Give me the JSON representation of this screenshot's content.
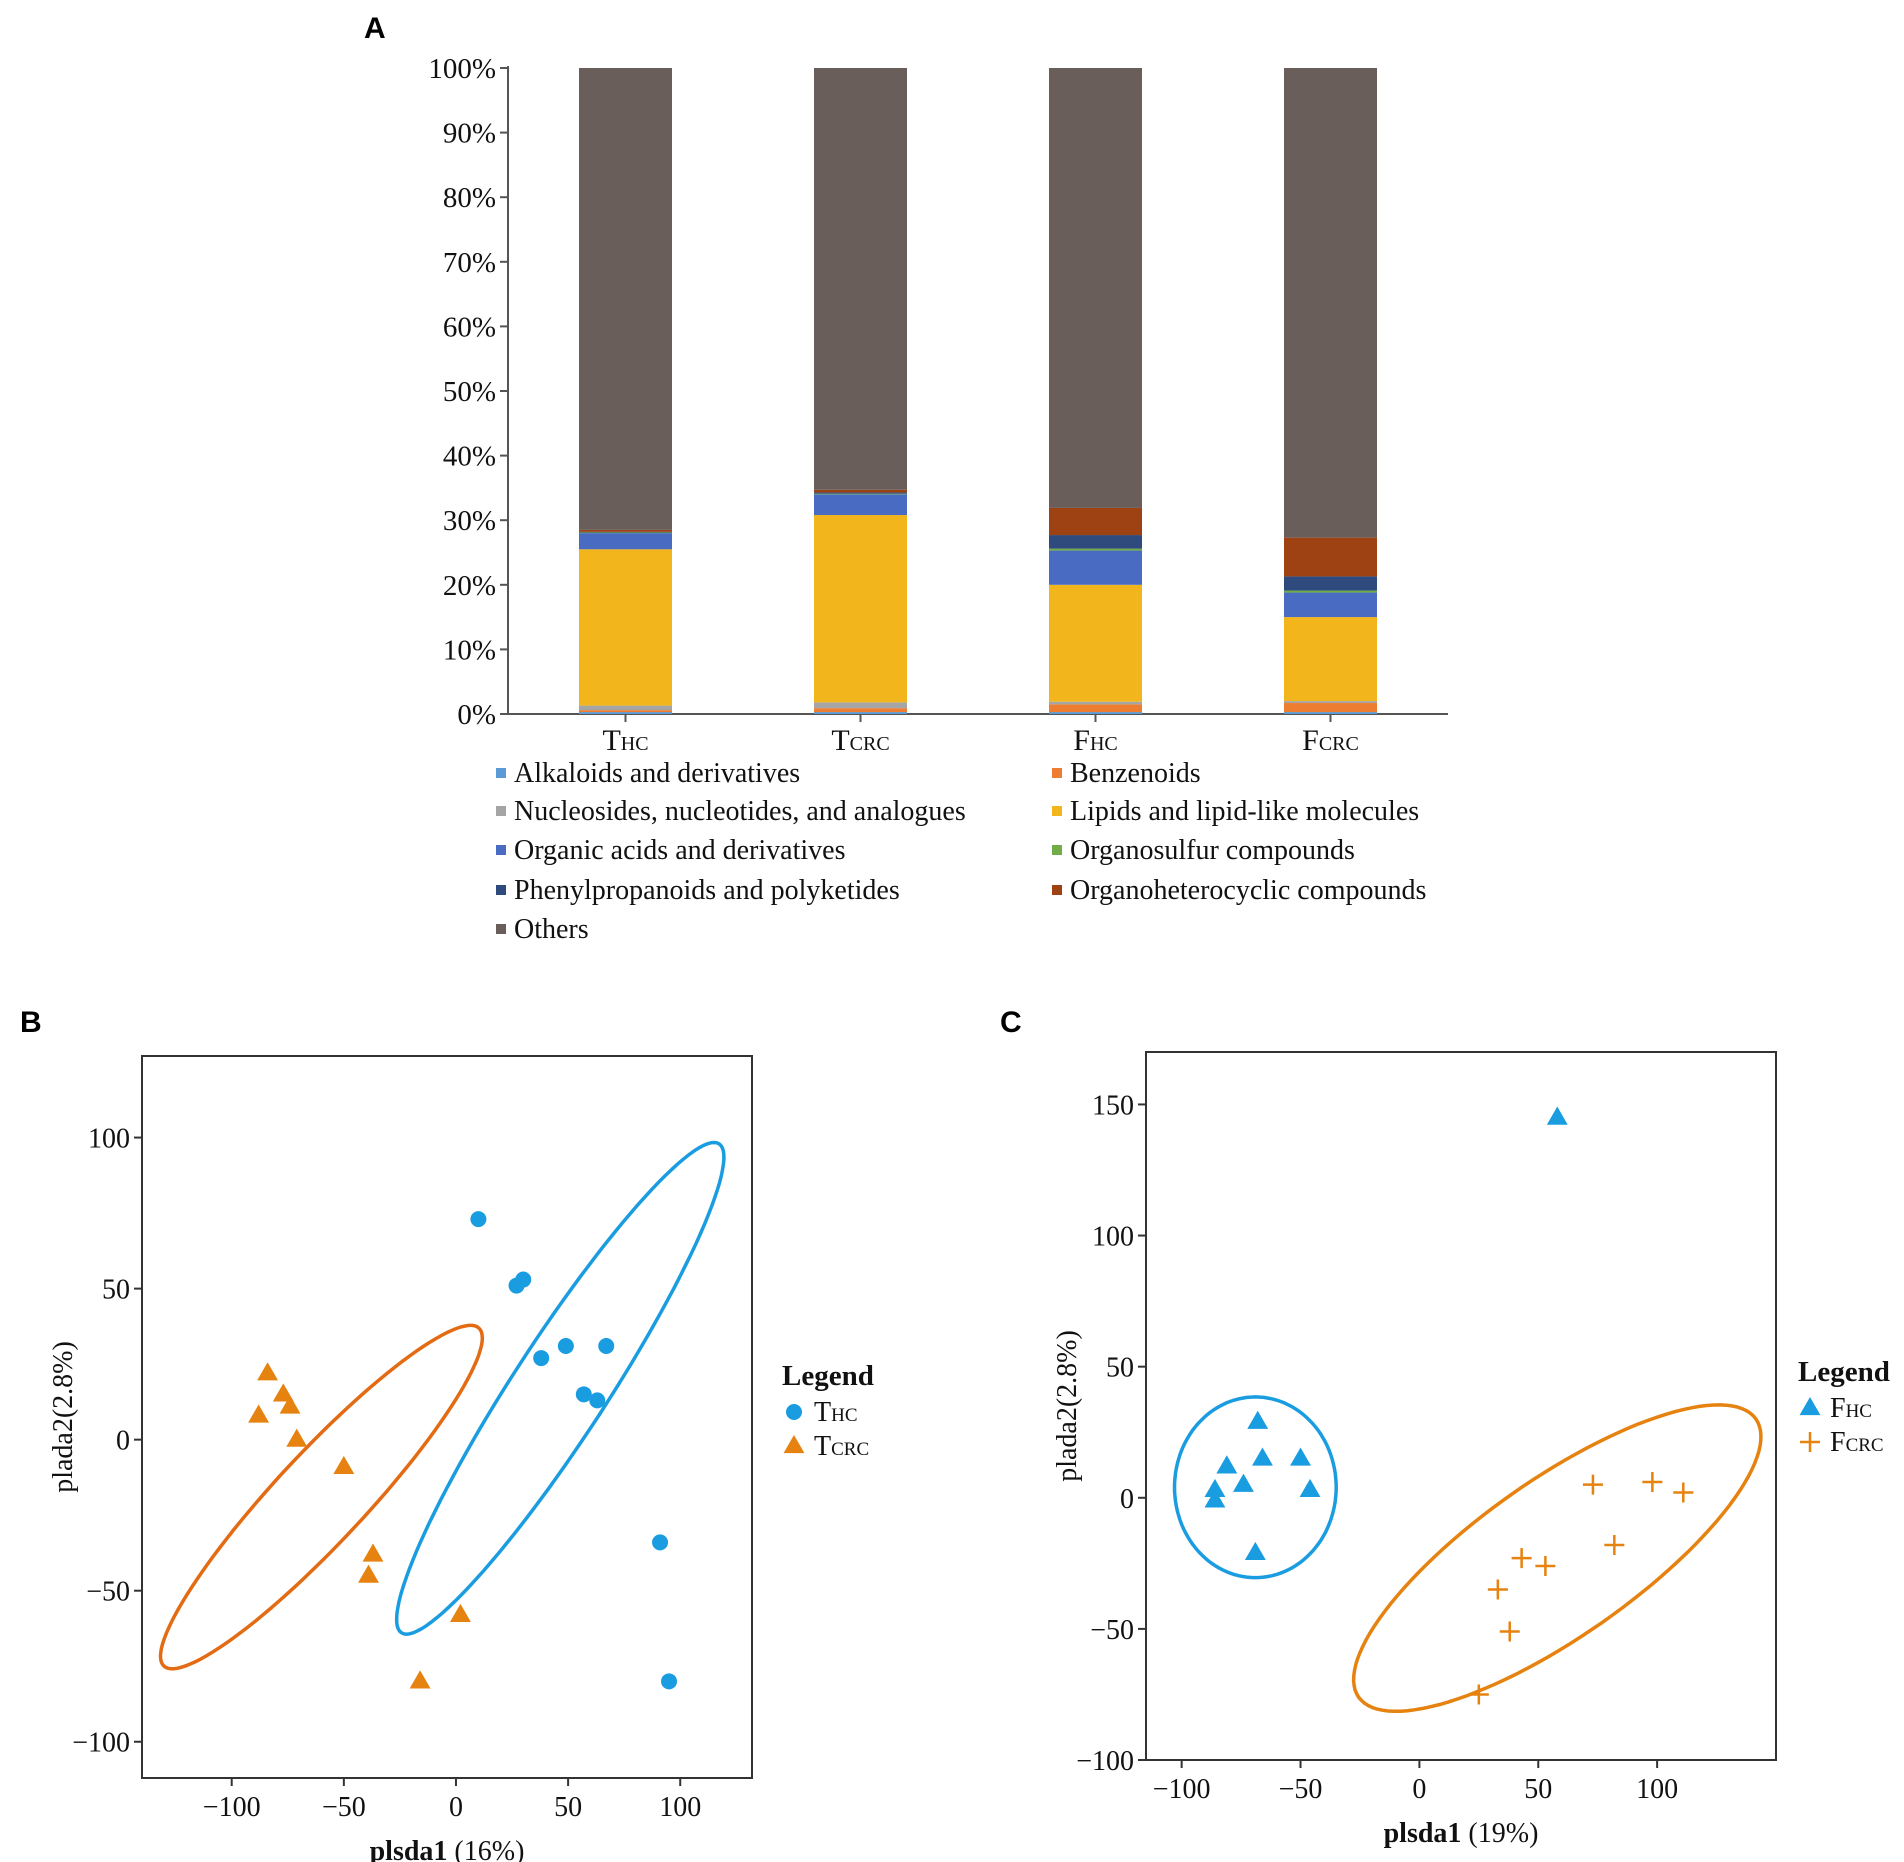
{
  "colors": {
    "alkaloids": "#5b9bd5",
    "benzenoids": "#ed7d31",
    "nucleosides": "#a5a5a5",
    "lipids": "#f2b51b",
    "organic_acids": "#4a6bc2",
    "organosulfur": "#70ad47",
    "phenylpropanoids": "#2f4a7c",
    "organoheterocyclic": "#9e4214",
    "others": "#6a5e5b",
    "blue_group": "#1a9de0",
    "orange_group": "#e6820f",
    "orange_ellipse": "#e26b14"
  },
  "chart_data": [
    {
      "panel": "A",
      "type": "bar",
      "stacked": true,
      "categories": [
        {
          "main": "T",
          "sub": "HC"
        },
        {
          "main": "T",
          "sub": "CRC"
        },
        {
          "main": "F",
          "sub": "HC"
        },
        {
          "main": "F",
          "sub": "CRC"
        }
      ],
      "yticks": [
        "0%",
        "10%",
        "20%",
        "30%",
        "40%",
        "50%",
        "60%",
        "70%",
        "80%",
        "90%",
        "100%"
      ],
      "ylim": [
        0,
        100
      ],
      "series": [
        {
          "name": "Alkaloids and derivatives",
          "color_key": "alkaloids",
          "values": [
            0.3,
            0.3,
            0.3,
            0.3
          ]
        },
        {
          "name": "Benzenoids",
          "color_key": "benzenoids",
          "values": [
            0.3,
            0.6,
            1.2,
            1.4
          ]
        },
        {
          "name": "Nucleosides, nucleotides, and analogues",
          "color_key": "nucleosides",
          "values": [
            0.7,
            0.9,
            0.4,
            0.3
          ]
        },
        {
          "name": "Lipids and lipid-like molecules",
          "color_key": "lipids",
          "values": [
            24.2,
            29.0,
            18.1,
            13.0
          ]
        },
        {
          "name": "Organic acids and derivatives",
          "color_key": "organic_acids",
          "values": [
            2.5,
            3.2,
            5.3,
            3.8
          ]
        },
        {
          "name": "Organosulfur compounds",
          "color_key": "organosulfur",
          "values": [
            0.1,
            0.1,
            0.3,
            0.3
          ]
        },
        {
          "name": "Phenylpropanoids and polyketides",
          "color_key": "phenylpropanoids",
          "values": [
            0.1,
            0.2,
            2.1,
            2.2
          ]
        },
        {
          "name": "Organoheterocyclic compounds",
          "color_key": "organoheterocyclic",
          "values": [
            0.3,
            0.4,
            4.2,
            6.0
          ]
        },
        {
          "name": "Others",
          "color_key": "others",
          "values": [
            71.5,
            65.3,
            68.1,
            72.7
          ]
        }
      ],
      "legend_columns": [
        [
          "Alkaloids and derivatives",
          "Nucleosides, nucleotides, and analogues",
          "Organic acids and derivatives",
          "Phenylpropanoids and polyketides",
          "Others"
        ],
        [
          "Benzenoids",
          "Lipids and lipid-like molecules",
          "Organosulfur compounds",
          "Organoheterocyclic compounds"
        ]
      ],
      "legend_placement": "bottom"
    },
    {
      "panel": "B",
      "type": "scatter",
      "xlabel": "plsda1 (16%)",
      "ylabel": "plada2(2.8%)",
      "xlim": [
        -140,
        132
      ],
      "ylim": [
        -112,
        127
      ],
      "xticks": [
        -100,
        -50,
        0,
        50,
        100
      ],
      "yticks": [
        100,
        50,
        0,
        -50,
        -100
      ],
      "legend_title": "Legend",
      "legend_placement": "right",
      "series": [
        {
          "main": "T",
          "sub": "HC",
          "marker": "circle",
          "color_key": "blue_group",
          "points": [
            [
              10,
              73
            ],
            [
              27,
              51
            ],
            [
              30,
              53
            ],
            [
              38,
              27
            ],
            [
              49,
              31
            ],
            [
              57,
              15
            ],
            [
              63,
              13
            ],
            [
              67,
              31
            ],
            [
              91,
              -34
            ],
            [
              95,
              -80
            ]
          ],
          "ellipse": {
            "cx": 46.5,
            "cy": 17,
            "rx": 130,
            "ry": 21,
            "angle_deg": -57
          }
        },
        {
          "main": "T",
          "sub": "CRC",
          "marker": "triangle",
          "color_key": "orange_group",
          "points": [
            [
              -84,
              22
            ],
            [
              -88,
              8
            ],
            [
              -77,
              15
            ],
            [
              -74,
              11
            ],
            [
              -71,
              0
            ],
            [
              -50,
              -9
            ],
            [
              -37,
              -38
            ],
            [
              -39,
              -45
            ],
            [
              2,
              -58
            ],
            [
              -16,
              -80
            ]
          ],
          "ellipse": {
            "cx": -60,
            "cy": -19,
            "rx": 103,
            "ry": 20,
            "angle_deg": -47
          }
        }
      ]
    },
    {
      "panel": "C",
      "type": "scatter",
      "xlabel": "plsda1 (19%)",
      "ylabel": "plada2(2.8%)",
      "xlim": [
        -115,
        150
      ],
      "ylim": [
        -100,
        170
      ],
      "xticks": [
        -100,
        -50,
        0,
        50,
        100
      ],
      "yticks": [
        150,
        100,
        50,
        0,
        -50,
        -100
      ],
      "legend_title": "Legend",
      "legend_placement": "right",
      "series": [
        {
          "main": "F",
          "sub": "HC",
          "marker": "triangle",
          "color_key": "blue_group",
          "points": [
            [
              -68,
              29
            ],
            [
              -81,
              12
            ],
            [
              -66,
              15
            ],
            [
              -50,
              15
            ],
            [
              -74,
              5
            ],
            [
              -86,
              3
            ],
            [
              -86,
              -1
            ],
            [
              -46,
              3
            ],
            [
              -69,
              -21
            ],
            [
              58,
              145
            ]
          ],
          "ellipse": {
            "cx": -69,
            "cy": 4,
            "rx": 34,
            "ry": 38,
            "angle_deg": 0
          }
        },
        {
          "main": "F",
          "sub": "CRC",
          "marker": "plus",
          "color_key": "orange_group",
          "points": [
            [
              73,
              5
            ],
            [
              98,
              6
            ],
            [
              111,
              2
            ],
            [
              82,
              -18
            ],
            [
              43,
              -23
            ],
            [
              53,
              -26
            ],
            [
              33,
              -35
            ],
            [
              38,
              -51
            ],
            [
              25,
              -75
            ]
          ],
          "ellipse": {
            "cx": 58,
            "cy": -23,
            "rx": 102,
            "ry": 33,
            "angle_deg": -35
          }
        }
      ]
    }
  ]
}
